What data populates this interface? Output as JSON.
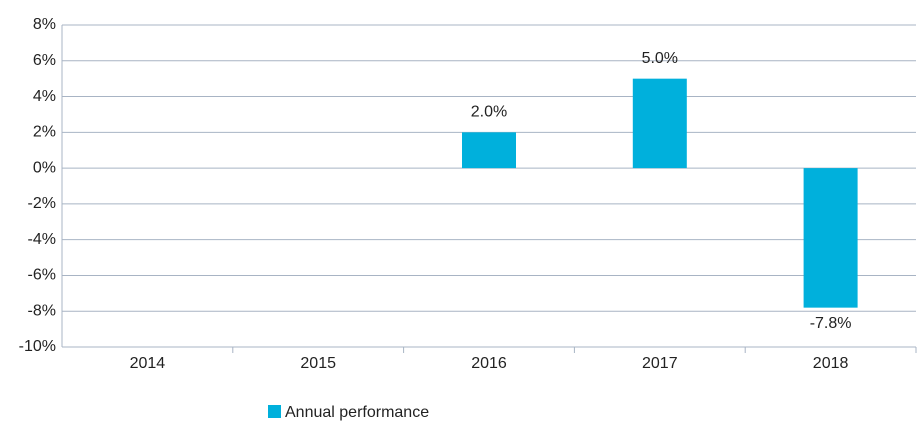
{
  "chart_data": {
    "type": "bar",
    "categories": [
      "2014",
      "2015",
      "2016",
      "2017",
      "2018"
    ],
    "series": [
      {
        "name": "Annual performance",
        "color": "#00b0dc",
        "values": [
          null,
          null,
          2.0,
          5.0,
          -7.8
        ],
        "value_labels": [
          null,
          null,
          "2.0%",
          "5.0%",
          "-7.8%"
        ]
      }
    ],
    "ylim": [
      -10,
      8
    ],
    "yticks": [
      {
        "value": -10,
        "label": "-10%"
      },
      {
        "value": -8,
        "label": "-8%"
      },
      {
        "value": -6,
        "label": "-6%"
      },
      {
        "value": -4,
        "label": "-4%"
      },
      {
        "value": -2,
        "label": "-2%"
      },
      {
        "value": 0,
        "label": "0%"
      },
      {
        "value": 2,
        "label": "2%"
      },
      {
        "value": 4,
        "label": "4%"
      },
      {
        "value": 6,
        "label": "6%"
      },
      {
        "value": 8,
        "label": "8%"
      }
    ],
    "grid": true,
    "legend": "bottom"
  }
}
